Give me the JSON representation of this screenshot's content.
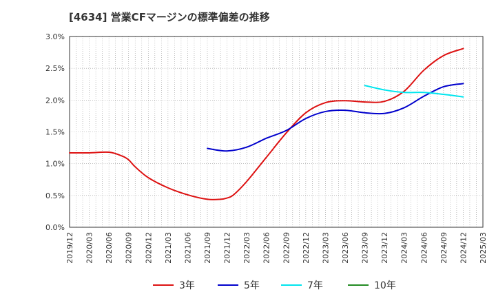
{
  "chart_data": {
    "type": "line",
    "title": "[4634]  営業CFマージンの標準偏差の推移",
    "xlabel": "",
    "ylabel": "",
    "ylim": [
      0,
      3.0
    ],
    "y_ticks": [
      "0.0%",
      "0.5%",
      "1.0%",
      "1.5%",
      "2.0%",
      "2.5%",
      "3.0%"
    ],
    "y_tick_values": [
      0,
      0.5,
      1.0,
      1.5,
      2.0,
      2.5,
      3.0
    ],
    "x_ticks": [
      "2019/12",
      "2020/03",
      "2020/06",
      "2020/09",
      "2020/12",
      "2021/03",
      "2021/06",
      "2021/09",
      "2021/12",
      "2022/03",
      "2022/06",
      "2022/09",
      "2022/12",
      "2023/03",
      "2023/06",
      "2023/09",
      "2023/12",
      "2024/03",
      "2024/06",
      "2024/09",
      "2024/12",
      "2025/03"
    ],
    "grid": true,
    "legend_position": "bottom",
    "series": [
      {
        "name": "3年",
        "color": "#dd1111",
        "x": [
          "2019/12",
          "2020/03",
          "2020/06",
          "2020/08",
          "2020/09",
          "2020/10",
          "2020/12",
          "2021/03",
          "2021/06",
          "2021/09",
          "2021/11",
          "2021/12",
          "2022/01",
          "2022/03",
          "2022/06",
          "2022/09",
          "2022/12",
          "2023/03",
          "2023/06",
          "2023/09",
          "2023/12",
          "2024/03",
          "2024/06",
          "2024/09",
          "2024/12"
        ],
        "values": [
          1.17,
          1.17,
          1.18,
          1.12,
          1.06,
          0.95,
          0.78,
          0.62,
          0.51,
          0.44,
          0.44,
          0.46,
          0.51,
          0.72,
          1.1,
          1.48,
          1.8,
          1.96,
          1.99,
          1.97,
          1.98,
          2.14,
          2.47,
          2.7,
          2.81
        ]
      },
      {
        "name": "5年",
        "color": "#0000cc",
        "x": [
          "2021/09",
          "2021/12",
          "2022/03",
          "2022/06",
          "2022/09",
          "2022/12",
          "2023/03",
          "2023/06",
          "2023/09",
          "2023/12",
          "2024/03",
          "2024/06",
          "2024/09",
          "2024/12"
        ],
        "values": [
          1.24,
          1.2,
          1.26,
          1.4,
          1.52,
          1.71,
          1.82,
          1.84,
          1.8,
          1.79,
          1.88,
          2.06,
          2.21,
          2.26
        ]
      },
      {
        "name": "7年",
        "color": "#00e5ee",
        "x": [
          "2023/09",
          "2023/12",
          "2024/03",
          "2024/06",
          "2024/09",
          "2024/12"
        ],
        "values": [
          2.23,
          2.16,
          2.12,
          2.12,
          2.09,
          2.05
        ]
      },
      {
        "name": "10年",
        "color": "#228b22",
        "x": [],
        "values": []
      }
    ]
  }
}
